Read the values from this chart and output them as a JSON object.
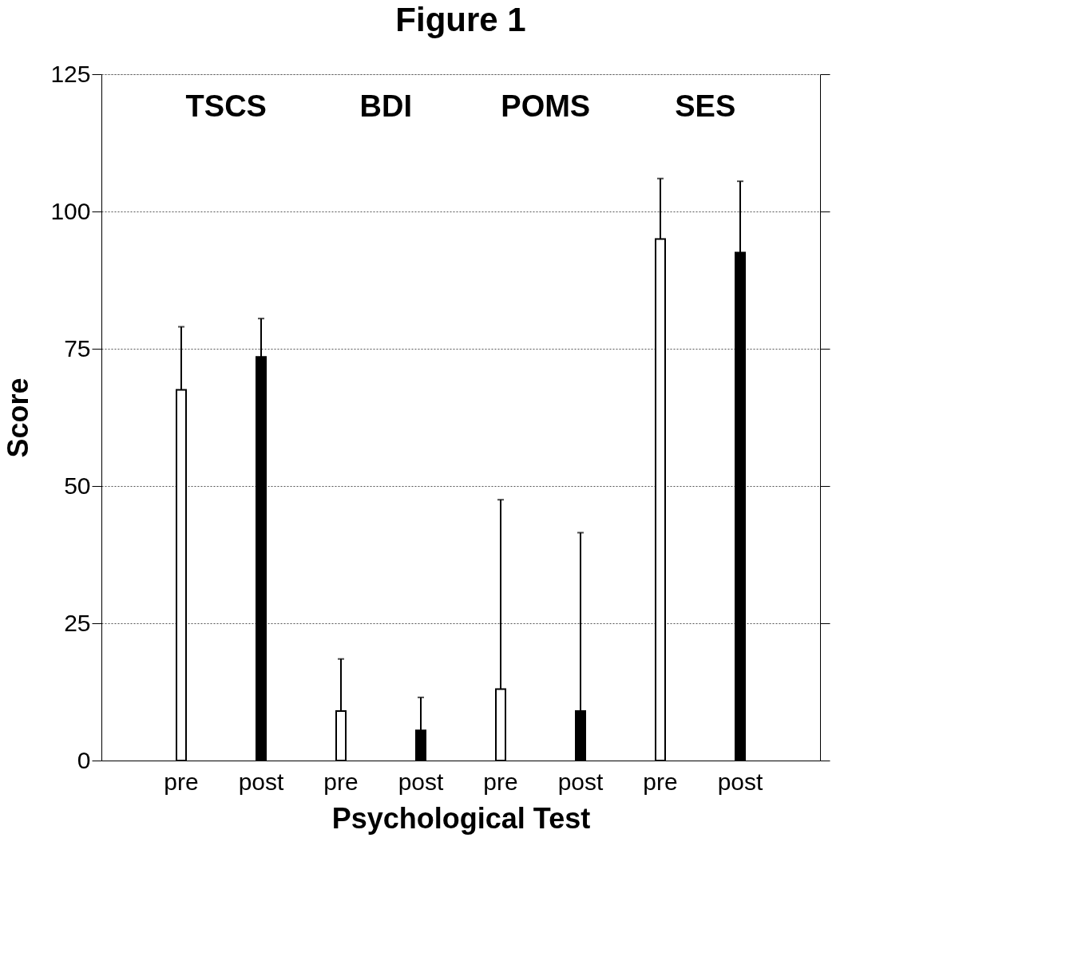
{
  "chart_data": {
    "type": "bar",
    "title": "Figure 1",
    "xlabel": "Psychological Test",
    "ylabel": "Score",
    "categories": [
      "pre",
      "post",
      "pre",
      "post",
      "pre",
      "post",
      "pre",
      "post"
    ],
    "values": [
      67.5,
      73.5,
      9,
      5.5,
      13,
      9,
      95,
      92.5
    ],
    "colors": [
      "#ffffff",
      "#000000",
      "#ffffff",
      "#000000",
      "#ffffff",
      "#000000",
      "#ffffff",
      "#000000"
    ],
    "errors": [
      [
        67.5,
        79
      ],
      [
        73.5,
        80.5
      ],
      [
        9,
        18.5
      ],
      [
        5.5,
        11.5
      ],
      [
        13,
        47.5
      ],
      [
        9,
        41.5
      ],
      [
        95,
        106
      ],
      [
        92.5,
        105.5
      ]
    ],
    "annotations": [
      "TSCS",
      "BDI",
      "POMS",
      "SES"
    ],
    "ylim": [
      0,
      125
    ],
    "yticks": [
      0,
      25,
      50,
      75,
      100,
      125
    ],
    "grid": "y"
  }
}
